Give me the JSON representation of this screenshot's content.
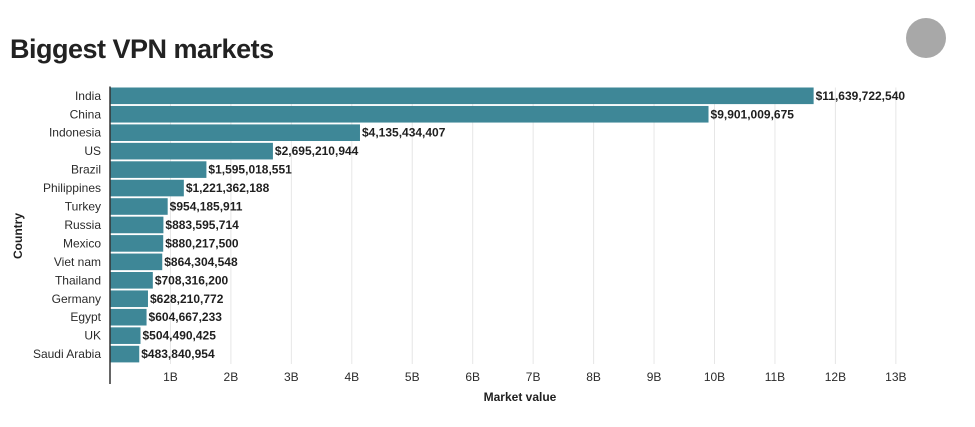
{
  "header": {
    "title": "Biggest VPN markets"
  },
  "colors": {
    "bar": "#3e8797",
    "grid": "#e6e6e6",
    "axis": "#333333",
    "avatar": "#a8a8a8"
  },
  "chart_data": {
    "type": "bar",
    "orientation": "horizontal",
    "title": "Biggest VPN markets",
    "xlabel": "Market value",
    "ylabel": "Country",
    "xlim": [
      0,
      13000000000
    ],
    "xticks": [
      1000000000,
      2000000000,
      3000000000,
      4000000000,
      5000000000,
      6000000000,
      7000000000,
      8000000000,
      9000000000,
      10000000000,
      11000000000,
      12000000000,
      13000000000
    ],
    "xtick_labels": [
      "1B",
      "2B",
      "3B",
      "4B",
      "5B",
      "6B",
      "7B",
      "8B",
      "9B",
      "10B",
      "11B",
      "12B",
      "13B"
    ],
    "grid": "vertical",
    "categories": [
      "India",
      "China",
      "Indonesia",
      "US",
      "Brazil",
      "Philippines",
      "Turkey",
      "Russia",
      "Mexico",
      "Viet nam",
      "Thailand",
      "Germany",
      "Egypt",
      "UK",
      "Saudi Arabia"
    ],
    "values": [
      11639722540,
      9901009675,
      4135434407,
      2695210944,
      1595018551,
      1221362188,
      954185911,
      883595714,
      880217500,
      864304548,
      708316200,
      628210772,
      604667233,
      504490425,
      483840954
    ],
    "data_labels": [
      "$11,639,722,540",
      "$9,901,009,675",
      "$4,135,434,407",
      "$2,695,210,944",
      "$1,595,018,551",
      "$1,221,362,188",
      "$954,185,911",
      "$883,595,714",
      "$880,217,500",
      "$864,304,548",
      "$708,316,200",
      "$628,210,772",
      "$604,667,233",
      "$504,490,425",
      "$483,840,954"
    ]
  }
}
